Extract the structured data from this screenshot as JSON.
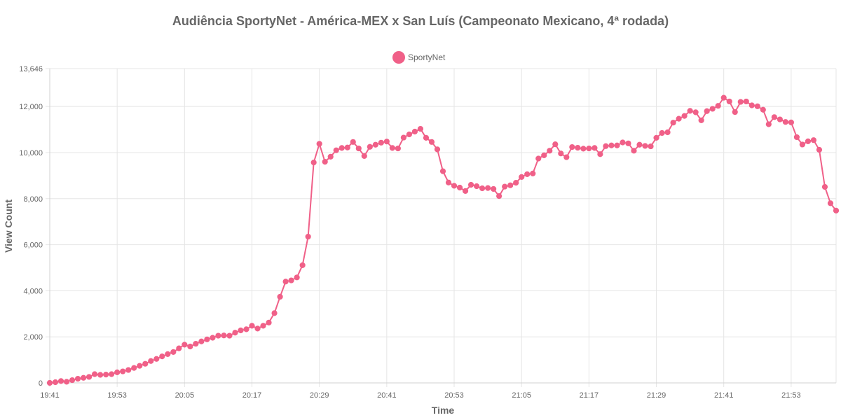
{
  "chart_data": {
    "type": "line",
    "title": "Audiência SportyNet - América-MEX x San Luís (Campeonato Mexicano, 4ª rodada)",
    "xlabel": "Time",
    "ylabel": "View Count",
    "x_tick_labels": [
      "19:41",
      "19:53",
      "20:05",
      "20:17",
      "20:29",
      "20:41",
      "20:53",
      "21:05",
      "21:17",
      "21:29",
      "21:41",
      "21:53"
    ],
    "y_tick_labels": [
      "0",
      "2,000",
      "4,000",
      "6,000",
      "8,000",
      "10,000",
      "12,000",
      "13,646"
    ],
    "y_ticks": [
      0,
      2000,
      4000,
      6000,
      8000,
      10000,
      12000,
      13646
    ],
    "ylim": [
      0,
      13646
    ],
    "x_start": "19:41",
    "x_interval_minutes": 1,
    "grid": true,
    "legend_position": "top",
    "series": [
      {
        "name": "SportyNet",
        "color": "#f06088",
        "values": [
          0,
          30,
          80,
          50,
          120,
          180,
          220,
          260,
          380,
          350,
          360,
          380,
          460,
          500,
          560,
          650,
          740,
          830,
          950,
          1040,
          1150,
          1250,
          1340,
          1500,
          1660,
          1580,
          1700,
          1800,
          1890,
          1960,
          2050,
          2060,
          2050,
          2180,
          2280,
          2330,
          2480,
          2360,
          2480,
          2620,
          3030,
          3740,
          4400,
          4450,
          4580,
          5110,
          6350,
          9570,
          10380,
          9600,
          9820,
          10100,
          10200,
          10220,
          10460,
          10180,
          9850,
          10250,
          10340,
          10430,
          10480,
          10200,
          10180,
          10650,
          10790,
          10910,
          11030,
          10640,
          10460,
          10140,
          9190,
          8700,
          8560,
          8480,
          8330,
          8600,
          8540,
          8450,
          8460,
          8420,
          8110,
          8520,
          8580,
          8690,
          8940,
          9060,
          9090,
          9740,
          9880,
          10080,
          10360,
          9960,
          9800,
          10240,
          10210,
          10170,
          10180,
          10200,
          9930,
          10280,
          10310,
          10310,
          10440,
          10400,
          10080,
          10340,
          10290,
          10270,
          10640,
          10850,
          10880,
          11300,
          11470,
          11590,
          11810,
          11750,
          11400,
          11800,
          11900,
          12030,
          12380,
          12220,
          11760,
          12200,
          12220,
          12050,
          12010,
          11860,
          11230,
          11540,
          11440,
          11330,
          11310,
          10670,
          10350,
          10490,
          10540,
          10120,
          8510,
          7800,
          7480
        ]
      }
    ]
  }
}
